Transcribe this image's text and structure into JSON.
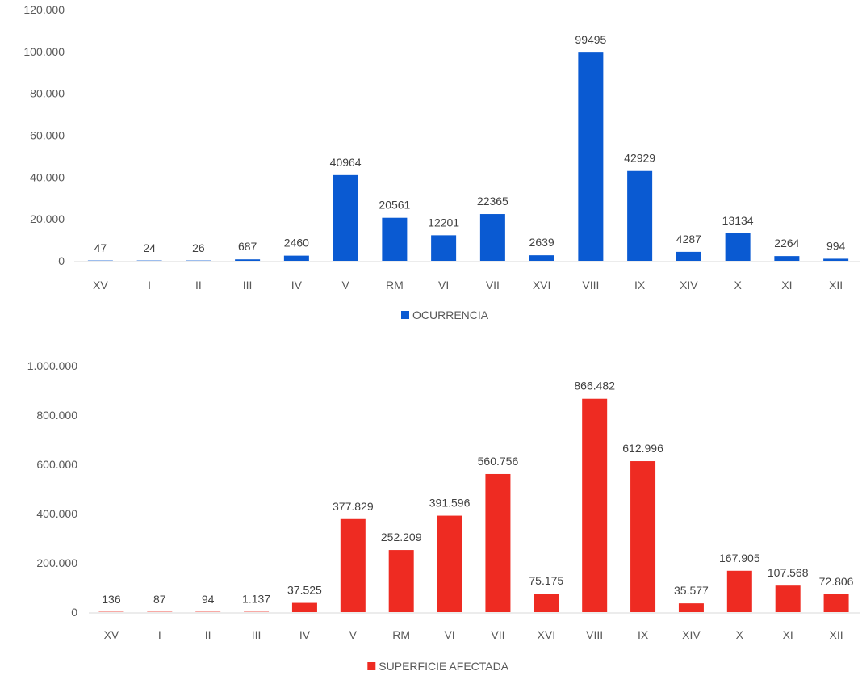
{
  "chart_data": [
    {
      "type": "bar",
      "categories": [
        "XV",
        "I",
        "II",
        "III",
        "IV",
        "V",
        "RM",
        "VI",
        "VII",
        "XVI",
        "VIII",
        "IX",
        "XIV",
        "X",
        "XI",
        "XII"
      ],
      "series": [
        {
          "name": "OCURRENCIA",
          "values": [
            47,
            24,
            26,
            687,
            2460,
            40964,
            20561,
            12201,
            22365,
            2639,
            99495,
            42929,
            4287,
            13134,
            2264,
            994
          ],
          "labels": [
            "47",
            "24",
            "26",
            "687",
            "2460",
            "40964",
            "20561",
            "12201",
            "22365",
            "2639",
            "99495",
            "42929",
            "4287",
            "13134",
            "2264",
            "994"
          ]
        }
      ],
      "ylim": [
        0,
        120000
      ],
      "yticks": [
        0,
        20000,
        40000,
        60000,
        80000,
        100000,
        120000
      ],
      "ytick_labels": [
        "0",
        "20.000",
        "40.000",
        "60.000",
        "80.000",
        "100.000",
        "120.000"
      ],
      "grid": false,
      "legend_position": "bottom",
      "color": "#0a5ad2"
    },
    {
      "type": "bar",
      "categories": [
        "XV",
        "I",
        "II",
        "III",
        "IV",
        "V",
        "RM",
        "VI",
        "VII",
        "XVI",
        "VIII",
        "IX",
        "XIV",
        "X",
        "XI",
        "XII"
      ],
      "series": [
        {
          "name": "SUPERFICIE AFECTADA",
          "values": [
            136,
            87,
            94,
            1137,
            37525,
            377829,
            252209,
            391596,
            560756,
            75175,
            866482,
            612996,
            35577,
            167905,
            107568,
            72806
          ],
          "labels": [
            "136",
            "87",
            "94",
            "1.137",
            "37.525",
            "377.829",
            "252.209",
            "391.596",
            "560.756",
            "75.175",
            "866.482",
            "612.996",
            "35.577",
            "167.905",
            "107.568",
            "72.806"
          ]
        }
      ],
      "ylim": [
        0,
        1000000
      ],
      "yticks": [
        0,
        200000,
        400000,
        600000,
        800000,
        1000000
      ],
      "ytick_labels": [
        "0",
        "200.000",
        "400.000",
        "600.000",
        "800.000",
        "1.000.000"
      ],
      "grid": false,
      "legend_position": "bottom",
      "color": "#ee2b22"
    }
  ]
}
